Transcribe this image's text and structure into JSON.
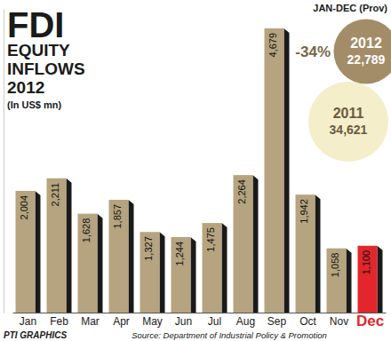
{
  "chart_data": {
    "type": "bar",
    "title": "FDI EQUITY INFLOWS 2012",
    "subtitle": "(In US$ mn)",
    "categories": [
      "Jan",
      "Feb",
      "Mar",
      "Apr",
      "May",
      "Jun",
      "Jul",
      "Aug",
      "Sep",
      "Oct",
      "Nov",
      "Dec"
    ],
    "values": [
      2004,
      2211,
      1628,
      1857,
      1327,
      1244,
      1475,
      2264,
      4679,
      1942,
      1058,
      1100
    ],
    "value_labels": [
      "2,004",
      "2,211",
      "1,628",
      "1,857",
      "1,327",
      "1,244",
      "1,475",
      "2,264",
      "4,679",
      "1,942",
      "1,058",
      "1,100"
    ],
    "colors": [
      "#b5a47f",
      "#b5a47f",
      "#b5a47f",
      "#b5a47f",
      "#b5a47f",
      "#b5a47f",
      "#b5a47f",
      "#b5a47f",
      "#b5a47f",
      "#b5a47f",
      "#b5a47f",
      "#e3262b"
    ],
    "ylim": [
      0,
      5000
    ],
    "data_labels": true,
    "tick_labels": "x",
    "annotations": [
      "JAN-DEC (Prov)",
      "-34%"
    ],
    "totals": [
      {
        "name": "2012",
        "value": 22789,
        "label": "22,789",
        "color": "#a38d68"
      },
      {
        "name": "2011",
        "value": 34621,
        "label": "34,621",
        "color": "#f4eecb"
      }
    ],
    "source": "Source: Department of Industrial Policy & Promotion",
    "credit": "PTI GRAPHICS"
  }
}
